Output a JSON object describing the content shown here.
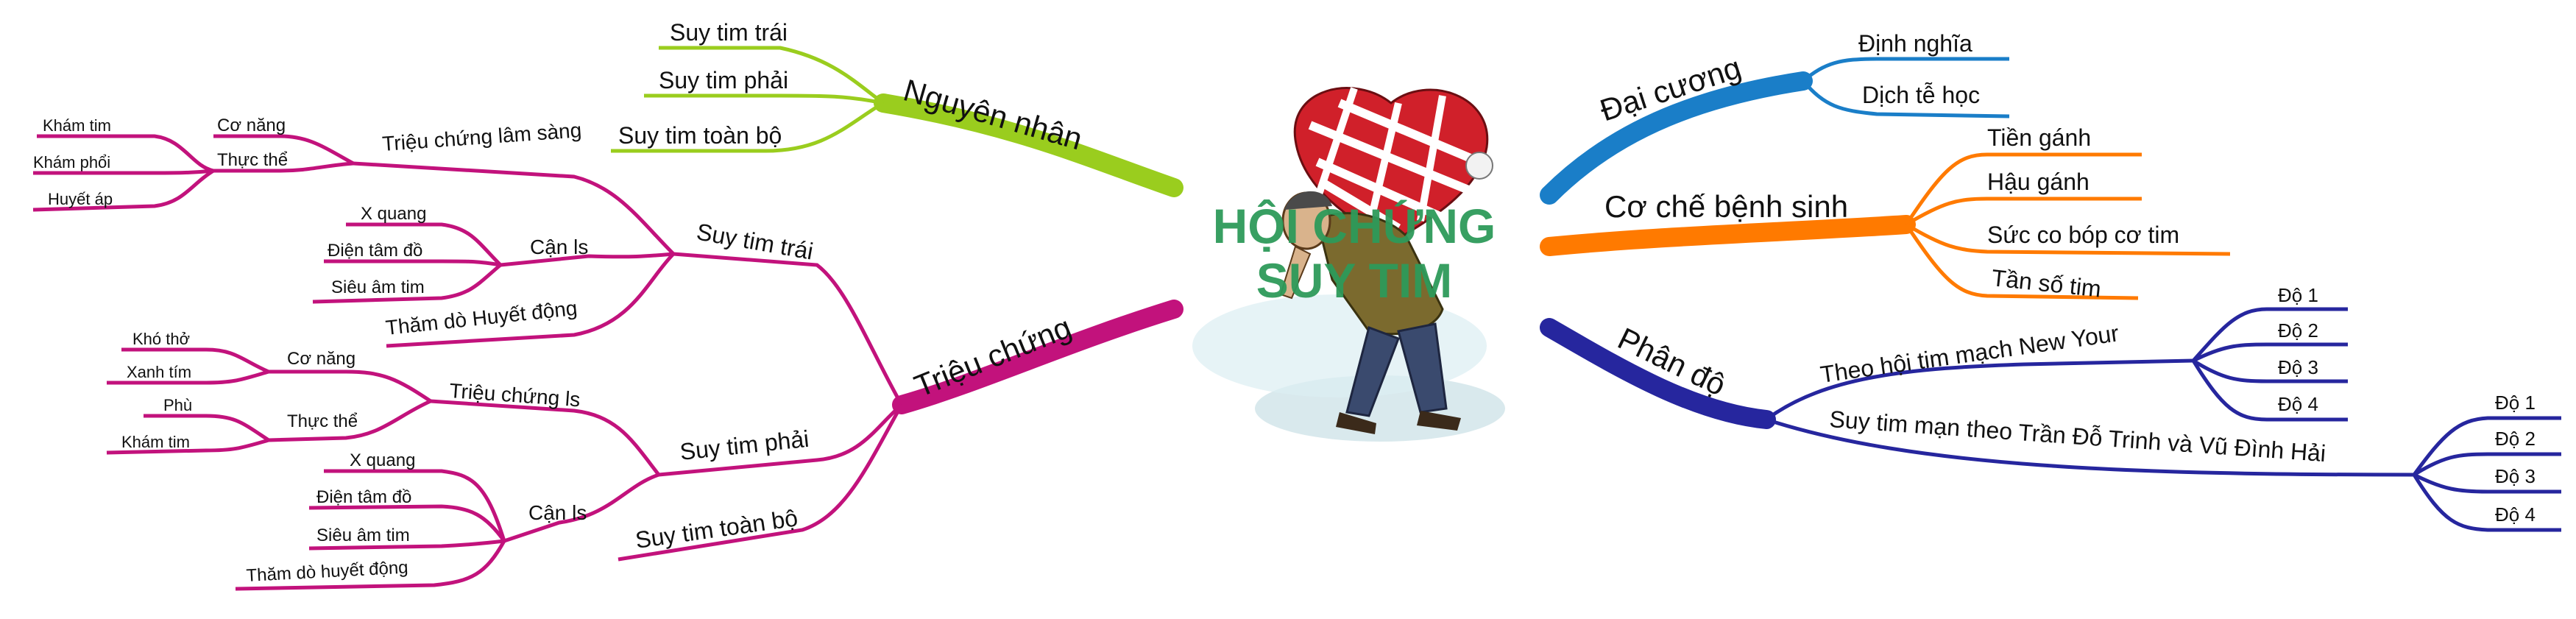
{
  "colors": {
    "green": "#9ACD1E",
    "magenta": "#C2127C",
    "blue": "#1A7EC8",
    "orange": "#FF7A00",
    "navy": "#26269E",
    "title": "#2E9A5A"
  },
  "center": {
    "title_line1": "HỘI CHỨNG",
    "title_line2": "SUY TIM",
    "image_icon": "sick-man-carrying-heart-bag"
  },
  "nguyen_nhan": {
    "label": "Nguyên nhân",
    "children": [
      "Suy tim trái",
      "Suy tim phải",
      "Suy tim toàn bộ"
    ]
  },
  "trieu_chung": {
    "label": "Triệu chứng",
    "suy_tim_trai": {
      "label": "Suy tim trái",
      "lam_sang": {
        "label": "Triệu chứng lâm sàng",
        "co_nang": "Cơ năng",
        "thuc_the": "Thực thể",
        "leaves": [
          "Khám tim",
          "Khám phổi",
          "Huyết áp"
        ]
      },
      "can_ls": {
        "label": "Cận ls",
        "leaves": [
          "X quang",
          "Điện tâm đồ",
          "Siêu âm tim"
        ]
      },
      "tham_do": "Thăm dò Huyết động"
    },
    "suy_tim_phai": {
      "label": "Suy tim phải",
      "trieu_chung_ls": {
        "label": "Triệu chứng ls",
        "co_nang": {
          "label": "Cơ năng",
          "leaves": [
            "Khó thở",
            "Xanh tím"
          ]
        },
        "thuc_the": {
          "label": "Thực thể",
          "leaves": [
            "Phù",
            "Khám tim"
          ]
        }
      },
      "can_ls": {
        "label": "Cận ls",
        "leaves": [
          "X quang",
          "Điện tâm đồ",
          "Siêu âm tim",
          "Thăm dò huyết động"
        ]
      }
    },
    "suy_tim_toan_bo": "Suy tim toàn bộ"
  },
  "dai_cuong": {
    "label": "Đại cương",
    "children": [
      "Định nghĩa",
      "Dịch tễ học"
    ]
  },
  "co_che": {
    "label": "Cơ chế bệnh sinh",
    "children": [
      "Tiền gánh",
      "Hậu gánh",
      "Sức co bóp cơ tim",
      "Tần số tim"
    ]
  },
  "phan_do": {
    "label": "Phân độ",
    "nyha": {
      "label": "Theo hội tim mạch New Your",
      "leaves": [
        "Độ 1",
        "Độ 2",
        "Độ 3",
        "Độ 4"
      ]
    },
    "tran_do_trinh": {
      "label": "Suy tim mạn theo Trần Đỗ Trinh và Vũ Đình Hải",
      "leaves": [
        "Độ 1",
        "Độ 2",
        "Độ 3",
        "Độ 4"
      ]
    }
  }
}
